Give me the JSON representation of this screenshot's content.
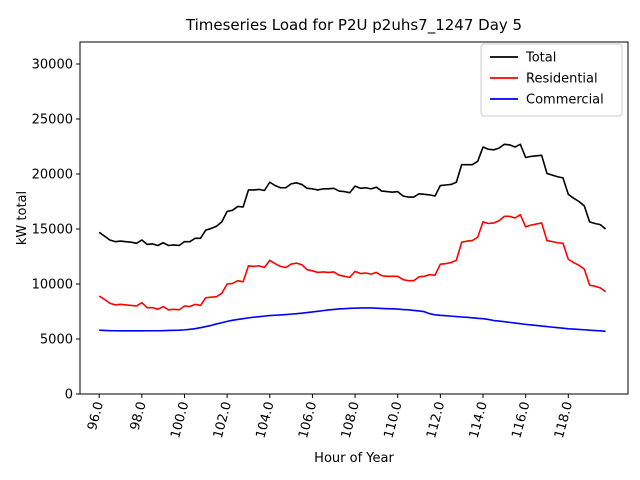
{
  "chart_data": {
    "type": "line",
    "title": "Timeseries Load for P2U p2uhs7_1247  Day 5",
    "xlabel": "Hour of Year",
    "ylabel": "kW total",
    "xlim": [
      95.1,
      120.8
    ],
    "ylim": [
      0,
      32000
    ],
    "yticks": [
      0,
      5000,
      10000,
      15000,
      20000,
      25000,
      30000
    ],
    "ytick_labels": [
      "0",
      "5000",
      "10000",
      "15000",
      "20000",
      "25000",
      "30000"
    ],
    "xticks": [
      96.0,
      98.0,
      100.0,
      102.0,
      104.0,
      106.0,
      108.0,
      110.0,
      112.0,
      114.0,
      116.0,
      118.0
    ],
    "xtick_labels": [
      "96.0",
      "98.0",
      "100.0",
      "102.0",
      "104.0",
      "106.0",
      "108.0",
      "110.0",
      "112.0",
      "114.0",
      "116.0",
      "118.0"
    ],
    "legend_position": "top-right",
    "x": [
      96.0,
      96.25,
      96.5,
      96.75,
      97.0,
      97.25,
      97.5,
      97.75,
      98.0,
      98.25,
      98.5,
      98.75,
      99.0,
      99.25,
      99.5,
      99.75,
      100.0,
      100.25,
      100.5,
      100.75,
      101.0,
      101.25,
      101.5,
      101.75,
      102.0,
      102.25,
      102.5,
      102.75,
      103.0,
      103.25,
      103.5,
      103.75,
      104.0,
      104.25,
      104.5,
      104.75,
      105.0,
      105.25,
      105.5,
      105.75,
      106.0,
      106.25,
      106.5,
      106.75,
      107.0,
      107.25,
      107.5,
      107.75,
      108.0,
      108.25,
      108.5,
      108.75,
      109.0,
      109.25,
      109.5,
      109.75,
      110.0,
      110.25,
      110.5,
      110.75,
      111.0,
      111.25,
      111.5,
      111.75,
      112.0,
      112.25,
      112.5,
      112.75,
      113.0,
      113.25,
      113.5,
      113.75,
      114.0,
      114.25,
      114.5,
      114.75,
      115.0,
      115.25,
      115.5,
      115.75,
      116.0,
      116.25,
      116.5,
      116.75,
      117.0,
      117.25,
      117.5,
      117.75,
      118.0,
      118.25,
      118.5,
      118.75,
      119.0,
      119.25,
      119.5,
      119.75
    ],
    "series": [
      {
        "name": "Total",
        "color": "#000000",
        "values": [
          14700,
          14350,
          14000,
          13850,
          13900,
          13850,
          13800,
          13700,
          14000,
          13600,
          13650,
          13500,
          13750,
          13500,
          13550,
          13500,
          13850,
          13850,
          14150,
          14150,
          14900,
          15050,
          15250,
          15650,
          16600,
          16700,
          17050,
          17000,
          18550,
          18550,
          18600,
          18500,
          19250,
          18950,
          18750,
          18750,
          19100,
          19200,
          19050,
          18700,
          18650,
          18550,
          18650,
          18650,
          18700,
          18450,
          18400,
          18300,
          18900,
          18700,
          18750,
          18650,
          18800,
          18450,
          18400,
          18350,
          18400,
          18000,
          17900,
          17900,
          18200,
          18150,
          18100,
          18000,
          18950,
          19000,
          19050,
          19250,
          20850,
          20850,
          20850,
          21150,
          22450,
          22250,
          22200,
          22350,
          22700,
          22650,
          22450,
          22700,
          21500,
          21600,
          21650,
          21700,
          20050,
          19900,
          19750,
          19650,
          18150,
          17800,
          17500,
          17100,
          15650,
          15500,
          15400,
          15000
        ]
      },
      {
        "name": "Residential",
        "color": "#ff0000",
        "values": [
          8900,
          8600,
          8250,
          8100,
          8150,
          8100,
          8050,
          8000,
          8300,
          7850,
          7850,
          7700,
          7950,
          7650,
          7700,
          7650,
          8000,
          7950,
          8150,
          8050,
          8750,
          8800,
          8850,
          9150,
          10000,
          10050,
          10300,
          10200,
          11650,
          11600,
          11650,
          11500,
          12150,
          11850,
          11600,
          11500,
          11800,
          11900,
          11750,
          11300,
          11200,
          11050,
          11100,
          11050,
          11100,
          10800,
          10700,
          10600,
          11150,
          10950,
          11000,
          10900,
          11050,
          10750,
          10700,
          10700,
          10700,
          10400,
          10300,
          10300,
          10650,
          10700,
          10850,
          10800,
          11800,
          11850,
          11950,
          12150,
          13800,
          13900,
          13950,
          14250,
          15650,
          15500,
          15550,
          15750,
          16150,
          16150,
          16000,
          16300,
          15200,
          15350,
          15450,
          15550,
          13950,
          13850,
          13750,
          13700,
          12250,
          11950,
          11700,
          11350,
          9900,
          9800,
          9650,
          9300
        ]
      },
      {
        "name": "Commercial",
        "color": "#0000ff",
        "values": [
          5800,
          5780,
          5760,
          5750,
          5740,
          5740,
          5740,
          5740,
          5740,
          5750,
          5750,
          5750,
          5760,
          5780,
          5790,
          5800,
          5830,
          5880,
          5940,
          6030,
          6130,
          6230,
          6370,
          6480,
          6600,
          6700,
          6780,
          6850,
          6920,
          6980,
          7030,
          7080,
          7130,
          7160,
          7190,
          7220,
          7260,
          7300,
          7350,
          7400,
          7460,
          7520,
          7580,
          7640,
          7690,
          7730,
          7760,
          7790,
          7800,
          7820,
          7820,
          7820,
          7800,
          7780,
          7760,
          7740,
          7720,
          7680,
          7650,
          7600,
          7550,
          7480,
          7300,
          7200,
          7150,
          7120,
          7080,
          7040,
          7000,
          6970,
          6930,
          6880,
          6850,
          6780,
          6680,
          6630,
          6570,
          6510,
          6450,
          6390,
          6330,
          6280,
          6230,
          6180,
          6130,
          6080,
          6030,
          5980,
          5930,
          5900,
          5870,
          5840,
          5800,
          5770,
          5740,
          5700
        ]
      }
    ]
  }
}
